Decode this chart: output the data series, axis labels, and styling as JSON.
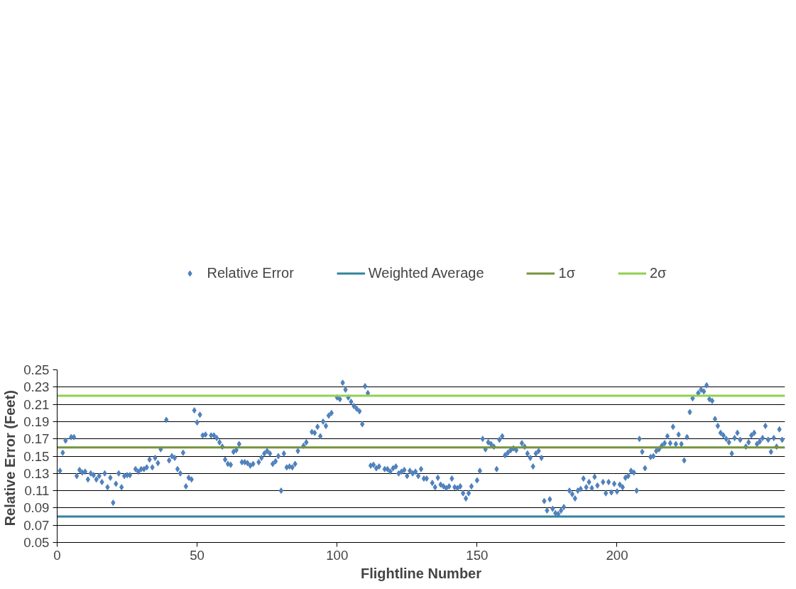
{
  "chart_data": {
    "type": "scatter",
    "xlabel": "Flightline Number",
    "ylabel": "Relative Error  (Feet)",
    "xlim": [
      0,
      260
    ],
    "xticks": [
      0,
      50,
      100,
      150,
      200
    ],
    "ylim": [
      0.05,
      0.25
    ],
    "yticks": [
      0.05,
      0.07,
      0.09,
      0.11,
      0.13,
      0.15,
      0.17,
      0.19,
      0.21,
      0.23,
      0.25
    ],
    "grid": "y",
    "legend": "top",
    "marker": "diamond",
    "series": [
      {
        "name": "Relative Error",
        "color": "#4f81bd",
        "x": [
          1,
          2,
          3,
          5,
          6,
          7,
          8,
          9,
          10,
          11,
          12,
          13,
          14,
          15,
          16,
          17,
          18,
          19,
          20,
          21,
          22,
          23,
          24,
          25,
          26,
          28,
          29,
          30,
          31,
          32,
          33,
          34,
          35,
          36,
          37,
          39,
          40,
          41,
          42,
          43,
          44,
          45,
          46,
          47,
          48,
          49,
          50,
          51,
          52,
          53,
          55,
          56,
          57,
          58,
          59,
          60,
          61,
          62,
          63,
          64,
          65,
          66,
          67,
          68,
          69,
          70,
          72,
          73,
          74,
          75,
          76,
          77,
          78,
          79,
          80,
          81,
          82,
          83,
          84,
          85,
          86,
          88,
          89,
          91,
          92,
          93,
          94,
          95,
          96,
          97,
          98,
          100,
          101,
          102,
          103,
          104,
          105,
          106,
          107,
          108,
          109,
          110,
          111,
          112,
          113,
          114,
          115,
          117,
          118,
          119,
          120,
          121,
          122,
          123,
          124,
          125,
          126,
          127,
          128,
          129,
          130,
          131,
          132,
          134,
          135,
          136,
          137,
          138,
          139,
          140,
          141,
          142,
          143,
          144,
          145,
          146,
          147,
          148,
          150,
          151,
          152,
          153,
          154,
          155,
          156,
          157,
          158,
          159,
          160,
          161,
          162,
          163,
          164,
          166,
          167,
          168,
          169,
          170,
          171,
          172,
          173,
          174,
          175,
          176,
          177,
          178,
          179,
          180,
          181,
          183,
          184,
          185,
          186,
          187,
          188,
          189,
          190,
          191,
          192,
          193,
          195,
          196,
          197,
          198,
          199,
          200,
          201,
          202,
          203,
          204,
          205,
          206,
          207,
          208,
          209,
          210,
          212,
          213,
          214,
          215,
          216,
          217,
          218,
          219,
          220,
          221,
          222,
          223,
          224,
          225,
          226,
          227,
          229,
          230,
          231,
          232,
          233,
          234,
          235,
          236,
          237,
          238,
          239,
          240,
          241,
          242,
          243,
          244,
          246,
          247,
          248,
          249,
          250,
          251,
          252,
          253,
          254,
          255,
          256,
          257,
          258,
          259
        ],
        "values": [
          0.133,
          0.154,
          0.168,
          0.172,
          0.172,
          0.127,
          0.134,
          0.131,
          0.132,
          0.123,
          0.13,
          0.128,
          0.123,
          0.127,
          0.12,
          0.13,
          0.114,
          0.125,
          0.096,
          0.118,
          0.13,
          0.114,
          0.127,
          0.128,
          0.128,
          0.135,
          0.132,
          0.135,
          0.135,
          0.137,
          0.146,
          0.137,
          0.148,
          0.142,
          0.158,
          0.192,
          0.145,
          0.15,
          0.148,
          0.135,
          0.13,
          0.154,
          0.115,
          0.125,
          0.123,
          0.203,
          0.189,
          0.198,
          0.174,
          0.175,
          0.174,
          0.174,
          0.171,
          0.166,
          0.161,
          0.146,
          0.141,
          0.14,
          0.155,
          0.157,
          0.164,
          0.143,
          0.143,
          0.142,
          0.139,
          0.141,
          0.143,
          0.148,
          0.153,
          0.156,
          0.153,
          0.141,
          0.144,
          0.15,
          0.11,
          0.153,
          0.137,
          0.138,
          0.137,
          0.141,
          0.156,
          0.162,
          0.166,
          0.178,
          0.177,
          0.184,
          0.173,
          0.19,
          0.185,
          0.197,
          0.2,
          0.218,
          0.216,
          0.235,
          0.227,
          0.218,
          0.213,
          0.208,
          0.205,
          0.202,
          0.187,
          0.231,
          0.223,
          0.139,
          0.14,
          0.136,
          0.138,
          0.135,
          0.135,
          0.132,
          0.136,
          0.138,
          0.13,
          0.132,
          0.134,
          0.127,
          0.133,
          0.13,
          0.132,
          0.127,
          0.135,
          0.124,
          0.124,
          0.119,
          0.114,
          0.125,
          0.117,
          0.115,
          0.113,
          0.115,
          0.124,
          0.114,
          0.113,
          0.115,
          0.107,
          0.101,
          0.107,
          0.115,
          0.122,
          0.133,
          0.17,
          0.158,
          0.166,
          0.164,
          0.161,
          0.135,
          0.169,
          0.173,
          0.151,
          0.154,
          0.157,
          0.159,
          0.157,
          0.165,
          0.161,
          0.153,
          0.148,
          0.138,
          0.153,
          0.156,
          0.148,
          0.098,
          0.087,
          0.1,
          0.089,
          0.084,
          0.083,
          0.087,
          0.091,
          0.11,
          0.106,
          0.101,
          0.11,
          0.112,
          0.124,
          0.114,
          0.12,
          0.113,
          0.126,
          0.116,
          0.12,
          0.107,
          0.12,
          0.108,
          0.118,
          0.109,
          0.117,
          0.114,
          0.125,
          0.127,
          0.133,
          0.131,
          0.11,
          0.17,
          0.155,
          0.136,
          0.149,
          0.15,
          0.156,
          0.158,
          0.162,
          0.165,
          0.173,
          0.165,
          0.184,
          0.164,
          0.175,
          0.164,
          0.145,
          0.172,
          0.201,
          0.217,
          0.223,
          0.227,
          0.225,
          0.232,
          0.216,
          0.214,
          0.193,
          0.185,
          0.177,
          0.174,
          0.17,
          0.166,
          0.153,
          0.171,
          0.177,
          0.169,
          0.161,
          0.166,
          0.174,
          0.177,
          0.164,
          0.167,
          0.171,
          0.185,
          0.169,
          0.155,
          0.171,
          0.161,
          0.181,
          0.169
        ]
      }
    ],
    "ref_lines": [
      {
        "axis": "y",
        "value": 0.08,
        "label": "Weighted Average",
        "color": "#31859c"
      },
      {
        "axis": "y",
        "value": 0.16,
        "label": "1σ",
        "color": "#77933c"
      },
      {
        "axis": "y",
        "value": 0.22,
        "label": "2σ",
        "color": "#92d050"
      }
    ]
  }
}
